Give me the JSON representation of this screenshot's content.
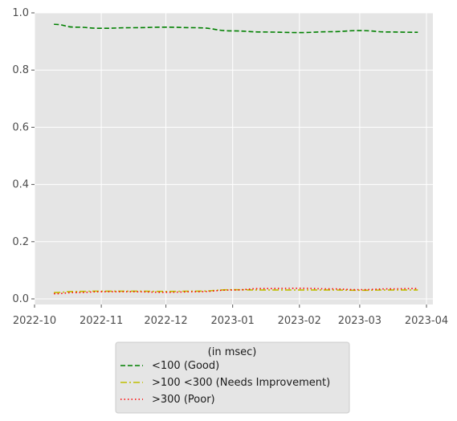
{
  "chart_data": {
    "type": "line",
    "title": "",
    "xlabel": "",
    "ylabel": "",
    "x_tick_labels": [
      "2022-10",
      "2022-11",
      "2022-12",
      "2023-01",
      "2023-02",
      "2023-03",
      "2023-04"
    ],
    "y_tick_labels": [
      "0.0",
      "0.2",
      "0.4",
      "0.6",
      "0.8",
      "1.0"
    ],
    "ylim": [
      0,
      1.0
    ],
    "grid": true,
    "legend": {
      "title": "(in msec)",
      "placement": "below",
      "entries": [
        "<100 (Good)",
        ">100  <300 (Needs Improvement)",
        ">300 (Poor)"
      ]
    },
    "x": [
      "2022-10-10",
      "2022-10-20",
      "2022-11-01",
      "2022-11-15",
      "2022-12-01",
      "2022-12-15",
      "2023-01-01",
      "2023-01-15",
      "2023-02-01",
      "2023-02-15",
      "2023-03-01",
      "2023-03-15",
      "2023-03-28"
    ],
    "series": [
      {
        "name": "<100 (Good)",
        "color": "#008000",
        "style": "dashed",
        "values": [
          0.96,
          0.95,
          0.946,
          0.948,
          0.95,
          0.948,
          0.937,
          0.933,
          0.931,
          0.934,
          0.938,
          0.933,
          0.932
        ]
      },
      {
        "name": ">100  <300 (Needs Improvement)",
        "color": "#bfbf00",
        "style": "dashdot",
        "values": [
          0.022,
          0.026,
          0.027,
          0.027,
          0.026,
          0.027,
          0.032,
          0.031,
          0.031,
          0.031,
          0.03,
          0.031,
          0.031
        ]
      },
      {
        "name": ">300 (Poor)",
        "color": "#ff0000",
        "style": "dotted",
        "values": [
          0.018,
          0.022,
          0.025,
          0.025,
          0.023,
          0.025,
          0.031,
          0.036,
          0.037,
          0.035,
          0.032,
          0.035,
          0.036
        ]
      }
    ]
  }
}
